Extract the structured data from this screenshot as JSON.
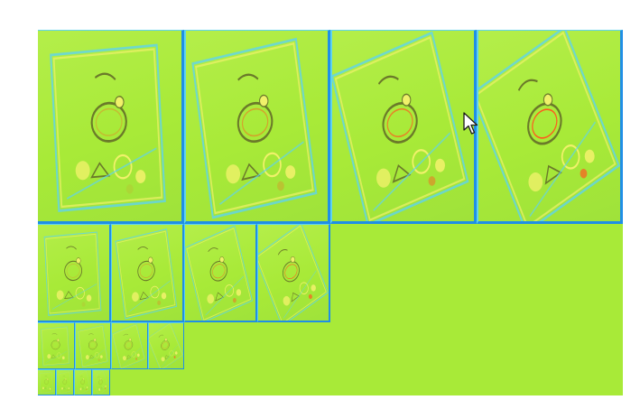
{
  "window": {
    "background": "#ffffff"
  },
  "colors": {
    "mosaic_bg": "#a8ea38",
    "edge": "#1f8fe6",
    "edge_light": "#5fd3ee",
    "highlight": "#f0f16a",
    "hot": "#ff5a1f",
    "dark": "#6b7a2a"
  },
  "scales": [
    {
      "level": 1,
      "tiles": 4,
      "orientation": [
        "upright",
        "slight-tilt",
        "tilt",
        "strong-tilt"
      ]
    },
    {
      "level": 2,
      "tiles": 4,
      "orientation": [
        "upright",
        "slight-tilt",
        "tilt",
        "strong-tilt"
      ]
    },
    {
      "level": 3,
      "tiles": 4,
      "orientation": [
        "upright",
        "slight-tilt",
        "tilt",
        "strong-tilt"
      ]
    },
    {
      "level": 4,
      "tiles": 4,
      "orientation": [
        "upright",
        "slight-tilt",
        "tilt",
        "strong-tilt"
      ]
    }
  ],
  "cursor": {
    "icon": "mouse-pointer-icon"
  }
}
